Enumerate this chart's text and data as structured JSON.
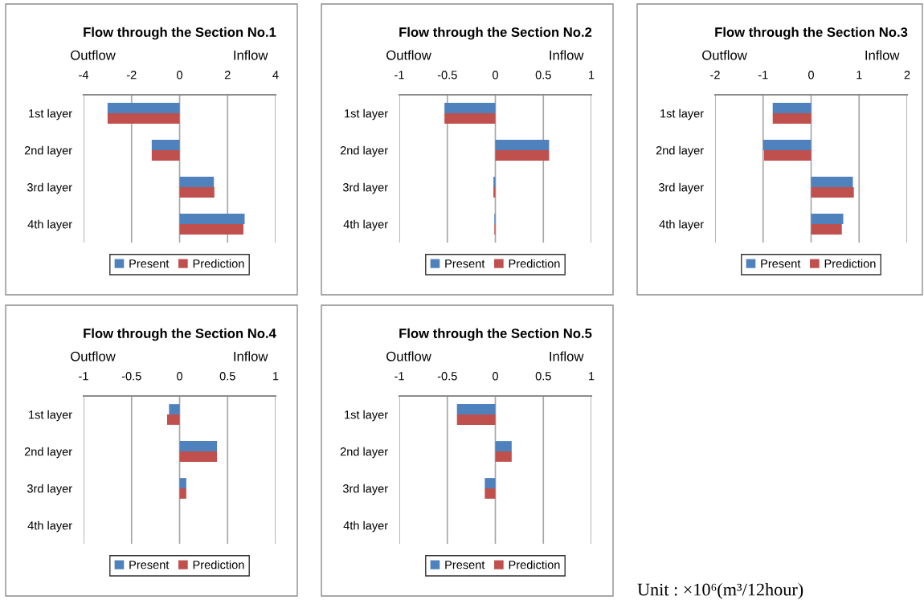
{
  "chart_data": [
    {
      "type": "bar",
      "orientation": "horizontal",
      "title": "Flow through the Section No.1",
      "categories": [
        "1st layer",
        "2nd layer",
        "3rd layer",
        "4th layer"
      ],
      "series": [
        {
          "name": "Present",
          "color": "#4f81bd",
          "values": [
            -3.0,
            -1.16,
            1.43,
            2.71
          ]
        },
        {
          "name": "Prediction",
          "color": "#c0504d",
          "values": [
            -3.0,
            -1.16,
            1.45,
            2.66
          ]
        }
      ],
      "xlim": [
        -4,
        4
      ],
      "xticks": [
        -4,
        -2,
        0,
        2,
        4
      ],
      "grid": "x",
      "legend": "bottom",
      "annotations": [
        "Outflow",
        "Inflow"
      ]
    },
    {
      "type": "bar",
      "orientation": "horizontal",
      "title": "Flow through the Section No.2",
      "categories": [
        "1st layer",
        "2nd layer",
        "3rd layer",
        "4th layer"
      ],
      "series": [
        {
          "name": "Present",
          "color": "#4f81bd",
          "values": [
            -0.53,
            0.56,
            -0.02,
            -0.01
          ]
        },
        {
          "name": "Prediction",
          "color": "#c0504d",
          "values": [
            -0.53,
            0.56,
            -0.02,
            -0.01
          ]
        }
      ],
      "xlim": [
        -1,
        1
      ],
      "xticks": [
        -1,
        -0.5,
        0,
        0.5,
        1
      ],
      "grid": "x",
      "legend": "bottom",
      "annotations": [
        "Outflow",
        "Inflow"
      ]
    },
    {
      "type": "bar",
      "orientation": "horizontal",
      "title": "Flow through the Section No.3",
      "categories": [
        "1st layer",
        "2nd layer",
        "3rd layer",
        "4th layer"
      ],
      "series": [
        {
          "name": "Present",
          "color": "#4f81bd",
          "values": [
            -0.8,
            -1.0,
            0.87,
            0.67
          ]
        },
        {
          "name": "Prediction",
          "color": "#c0504d",
          "values": [
            -0.8,
            -0.98,
            0.89,
            0.64
          ]
        }
      ],
      "xlim": [
        -2,
        2
      ],
      "xticks": [
        -2,
        -1,
        0,
        1,
        2
      ],
      "grid": "x",
      "legend": "bottom",
      "annotations": [
        "Outflow",
        "Inflow"
      ]
    },
    {
      "type": "bar",
      "orientation": "horizontal",
      "title": "Flow through the Section No.4",
      "categories": [
        "1st layer",
        "2nd layer",
        "3rd layer",
        "4th layer"
      ],
      "series": [
        {
          "name": "Present",
          "color": "#4f81bd",
          "values": [
            -0.11,
            0.39,
            0.07,
            null
          ]
        },
        {
          "name": "Prediction",
          "color": "#c0504d",
          "values": [
            -0.13,
            0.39,
            0.07,
            null
          ]
        }
      ],
      "xlim": [
        -1,
        1
      ],
      "xticks": [
        -1,
        -0.5,
        0,
        0.5,
        1
      ],
      "grid": "x",
      "legend": "bottom",
      "annotations": [
        "Outflow",
        "Inflow"
      ]
    },
    {
      "type": "bar",
      "orientation": "horizontal",
      "title": "Flow through the Section No.5",
      "categories": [
        "1st layer",
        "2nd layer",
        "3rd layer",
        "4th layer"
      ],
      "series": [
        {
          "name": "Present",
          "color": "#4f81bd",
          "values": [
            -0.4,
            0.17,
            -0.11,
            null
          ]
        },
        {
          "name": "Prediction",
          "color": "#c0504d",
          "values": [
            -0.4,
            0.17,
            -0.11,
            null
          ]
        }
      ],
      "xlim": [
        -1,
        1
      ],
      "xticks": [
        -1,
        -0.5,
        0,
        0.5,
        1
      ],
      "grid": "x",
      "legend": "bottom",
      "annotations": [
        "Outflow",
        "Inflow",
        "Unit : ×10⁶(m³/12hour)"
      ]
    }
  ]
}
